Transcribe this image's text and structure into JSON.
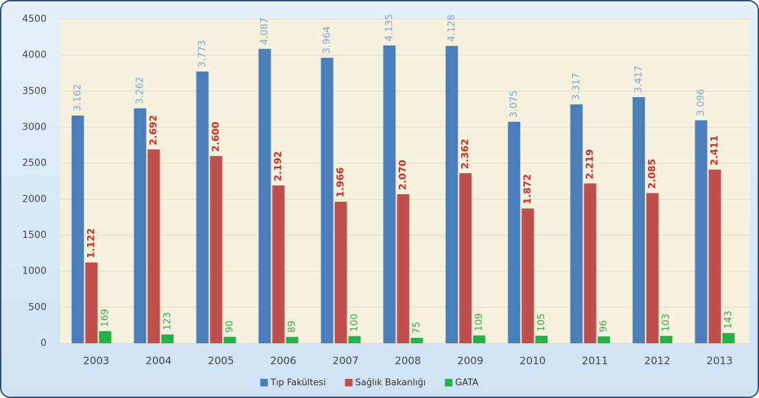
{
  "chart_data": {
    "type": "bar",
    "categories": [
      "2003",
      "2004",
      "2005",
      "2006",
      "2007",
      "2008",
      "2009",
      "2010",
      "2011",
      "2012",
      "2013"
    ],
    "series": [
      {
        "name": "Tıp Fakültesi",
        "color": "#4a7ebb",
        "label_color": "#7ea6d6",
        "values": [
          3162,
          3262,
          3773,
          4087,
          3964,
          4135,
          4128,
          3075,
          3317,
          3417,
          3096
        ],
        "value_labels": [
          "3.162",
          "3.262",
          "3.773",
          "4.087",
          "3.964",
          "4.135",
          "4.128",
          "3.075",
          "3.317",
          "3.417",
          "3.096"
        ]
      },
      {
        "name": "Sağlık Bakanlığı",
        "color": "#c0504d",
        "label_color": "#d0302c",
        "values": [
          1122,
          2692,
          2600,
          2192,
          1966,
          2070,
          2362,
          1872,
          2219,
          2085,
          2411
        ],
        "value_labels": [
          "1.122",
          "2.692",
          "2.600",
          "2.192",
          "1.966",
          "2.070",
          "2.362",
          "1.872",
          "2.219",
          "2.085",
          "2.411"
        ]
      },
      {
        "name": "GATA",
        "color": "#1fb34a",
        "label_color": "#3aaa4a",
        "values": [
          169,
          123,
          90,
          89,
          100,
          75,
          109,
          105,
          96,
          103,
          143
        ]
      }
    ],
    "ylim": [
      0,
      4500
    ],
    "yticks": [
      0,
      500,
      1000,
      1500,
      2000,
      2500,
      3000,
      3500,
      4000,
      4500
    ],
    "grid": true,
    "legend": "bottom"
  }
}
